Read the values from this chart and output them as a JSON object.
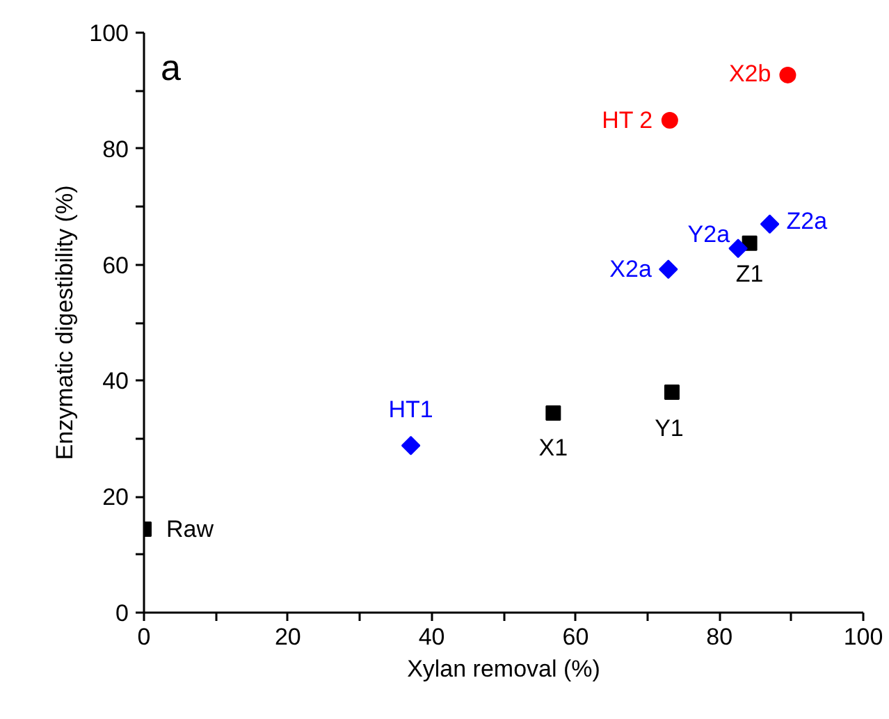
{
  "chart_data": {
    "type": "scatter",
    "title": "a",
    "xlabel": "Xylan removal (%)",
    "ylabel": "Enzymatic digestibility (%)",
    "xlim": [
      0,
      100
    ],
    "ylim": [
      0,
      100
    ],
    "xticks": [
      0,
      {
        "value": 10,
        "label": null
      },
      20,
      {
        "value": 30,
        "label": null
      },
      40,
      {
        "value": 50,
        "label": null
      },
      60,
      {
        "value": 70,
        "label": null
      },
      80,
      {
        "value": 90,
        "label": null
      },
      100
    ],
    "yticks": [
      0,
      {
        "value": 10,
        "label": null
      },
      20,
      {
        "value": 30,
        "label": null
      },
      40,
      {
        "value": 50,
        "label": null
      },
      60,
      {
        "value": 70,
        "label": null
      },
      80,
      {
        "value": 90,
        "label": null
      },
      100
    ],
    "grid": false,
    "series": [
      {
        "color": "#000000",
        "marker": "square",
        "x": [
          0,
          56.9,
          73.4,
          84.2
        ],
        "values": [
          14.4,
          34.4,
          38.0,
          63.7
        ]
      },
      {
        "color": "#0000ff",
        "marker": "diamond",
        "x": [
          37.1,
          72.9,
          82.6,
          87.0
        ],
        "values": [
          28.8,
          59.2,
          62.8,
          67.0
        ]
      },
      {
        "color": "#ff0000",
        "marker": "circle",
        "x": [
          73.1,
          89.5
        ],
        "values": [
          84.9,
          92.7
        ]
      }
    ],
    "annotations": [
      {
        "text": "Raw",
        "x": 0,
        "y": 14.4
      },
      {
        "text": "X1",
        "x": 56.9,
        "y": 34.4
      },
      {
        "text": "Y1",
        "x": 73.4,
        "y": 38.0
      },
      {
        "text": "Z1",
        "x": 84.2,
        "y": 63.7
      },
      {
        "text": "HT1",
        "x": 37.1,
        "y": 28.8
      },
      {
        "text": "X2a",
        "x": 72.9,
        "y": 59.2
      },
      {
        "text": "Y2a",
        "x": 82.6,
        "y": 62.8
      },
      {
        "text": "Z2a",
        "x": 87.0,
        "y": 67.0
      },
      {
        "text": "HT 2",
        "x": 73.1,
        "y": 84.9
      },
      {
        "text": "X2b",
        "x": 89.5,
        "y": 92.7
      }
    ]
  }
}
